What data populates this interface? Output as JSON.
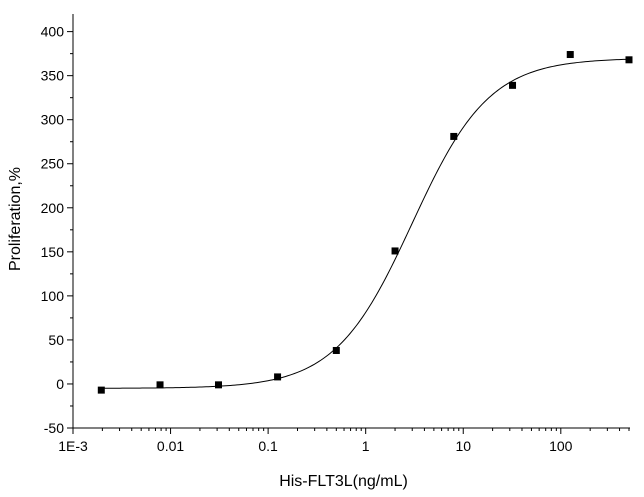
{
  "chart_data": {
    "type": "scatter",
    "xlabel": "His-FLT3L(ng/mL)",
    "ylabel": "Proliferation,%",
    "x_scale": "log",
    "xlim": [
      0.001,
      512
    ],
    "ylim": [
      -50,
      420
    ],
    "x_ticks": [
      0.001,
      0.01,
      0.1,
      1,
      10,
      100
    ],
    "x_tick_labels": [
      "1E-3",
      "0.01",
      "0.1",
      "1",
      "10",
      "100"
    ],
    "y_ticks": [
      -50,
      0,
      50,
      100,
      150,
      200,
      250,
      300,
      350,
      400
    ],
    "y_tick_labels": [
      "-50",
      "0",
      "50",
      "100",
      "150",
      "200",
      "250",
      "300",
      "350",
      "400"
    ],
    "grid": false,
    "series": [
      {
        "points": [
          {
            "x": 0.00195,
            "y": -7
          },
          {
            "x": 0.0078,
            "y": -1
          },
          {
            "x": 0.031,
            "y": -1
          },
          {
            "x": 0.125,
            "y": 8
          },
          {
            "x": 0.5,
            "y": 38
          },
          {
            "x": 2.0,
            "y": 151
          },
          {
            "x": 8.0,
            "y": 281
          },
          {
            "x": 32,
            "y": 339
          },
          {
            "x": 125,
            "y": 374
          },
          {
            "x": 500,
            "y": 368
          }
        ]
      }
    ],
    "fit_curve": {
      "model": "4PL",
      "bottom": -5,
      "top": 370,
      "ec50": 3.0,
      "hill": 1.1
    }
  }
}
